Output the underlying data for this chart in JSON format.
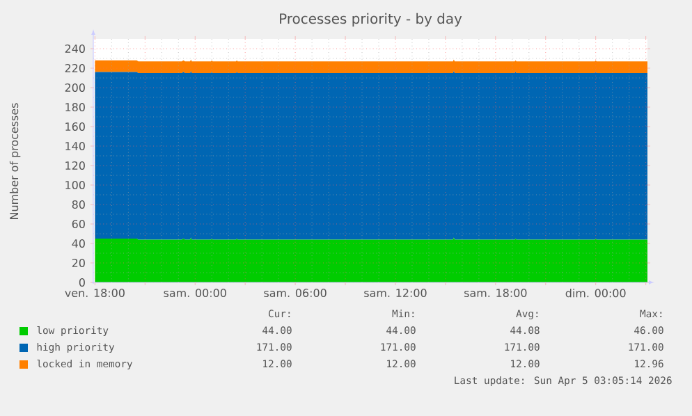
{
  "chart_data": {
    "type": "area",
    "stacked": true,
    "title": "Processes priority - by day",
    "ylabel": "Number of processes",
    "x": [
      "2026-04-03T18:00",
      "2026-04-03T20:30",
      "2026-04-03T20:36",
      "2026-04-03T23:12",
      "2026-04-03T23:18",
      "2026-04-03T23:24",
      "2026-04-03T23:42",
      "2026-04-03T23:45",
      "2026-04-03T23:48",
      "2026-04-04T00:57",
      "2026-04-04T01:00",
      "2026-04-04T01:03",
      "2026-04-04T02:27",
      "2026-04-04T02:30",
      "2026-04-04T02:33",
      "2026-04-04T15:27",
      "2026-04-04T15:30",
      "2026-04-04T15:33",
      "2026-04-04T19:09",
      "2026-04-04T19:12",
      "2026-04-04T19:15",
      "2026-04-04T23:57",
      "2026-04-05T00:00",
      "2026-04-05T00:03",
      "2026-04-05T03:06"
    ],
    "series": [
      {
        "name": "low priority",
        "color": "#00cc00",
        "values": [
          45,
          45,
          44,
          44,
          45,
          44,
          44,
          46,
          44,
          44,
          45,
          44,
          44,
          45,
          44,
          44,
          46,
          44,
          44,
          45,
          44,
          44,
          45,
          44,
          44
        ]
      },
      {
        "name": "high priority",
        "color": "#0066b3",
        "values": [
          171,
          171,
          171,
          171,
          171,
          171,
          171,
          171,
          171,
          171,
          171,
          171,
          171,
          171,
          171,
          171,
          171,
          171,
          171,
          171,
          171,
          171,
          171,
          171,
          171
        ]
      },
      {
        "name": "locked in memory",
        "color": "#ff8000",
        "values": [
          12,
          12,
          12,
          12,
          12,
          12,
          12,
          12,
          12,
          12,
          12,
          12,
          12,
          12,
          12,
          12,
          12,
          12,
          12,
          12,
          12,
          12,
          12,
          12,
          12
        ]
      }
    ],
    "xlim": [
      "2026-04-03T17:54",
      "2026-04-05T03:06"
    ],
    "xticks": [
      {
        "value": "2026-04-03T18:00",
        "label": "ven. 18:00"
      },
      {
        "value": "2026-04-03T21:00",
        "label": null
      },
      {
        "value": "2026-04-04T00:00",
        "label": "sam. 00:00"
      },
      {
        "value": "2026-04-04T03:00",
        "label": null
      },
      {
        "value": "2026-04-04T06:00",
        "label": "sam. 06:00"
      },
      {
        "value": "2026-04-04T09:00",
        "label": null
      },
      {
        "value": "2026-04-04T12:00",
        "label": "sam. 12:00"
      },
      {
        "value": "2026-04-04T15:00",
        "label": null
      },
      {
        "value": "2026-04-04T18:00",
        "label": "sam. 18:00"
      },
      {
        "value": "2026-04-04T21:00",
        "label": null
      },
      {
        "value": "2026-04-05T00:00",
        "label": "dim. 00:00"
      },
      {
        "value": "2026-04-05T03:00",
        "label": null
      }
    ],
    "ylim": [
      0,
      250
    ],
    "yticks": [
      0,
      20,
      40,
      60,
      80,
      100,
      120,
      140,
      160,
      180,
      200,
      220,
      240
    ],
    "grid": true,
    "legend": "bottom",
    "annotations": [
      "Cur:",
      "Min:",
      "Avg:",
      "Max:",
      "44.00",
      "44.00",
      "44.08",
      "46.00",
      "171.00",
      "171.00",
      "171.00",
      "171.00",
      "12.00",
      "12.00",
      "12.00",
      "12.96",
      "Last update: Sun Apr  5 03:05:14 2026"
    ]
  }
}
